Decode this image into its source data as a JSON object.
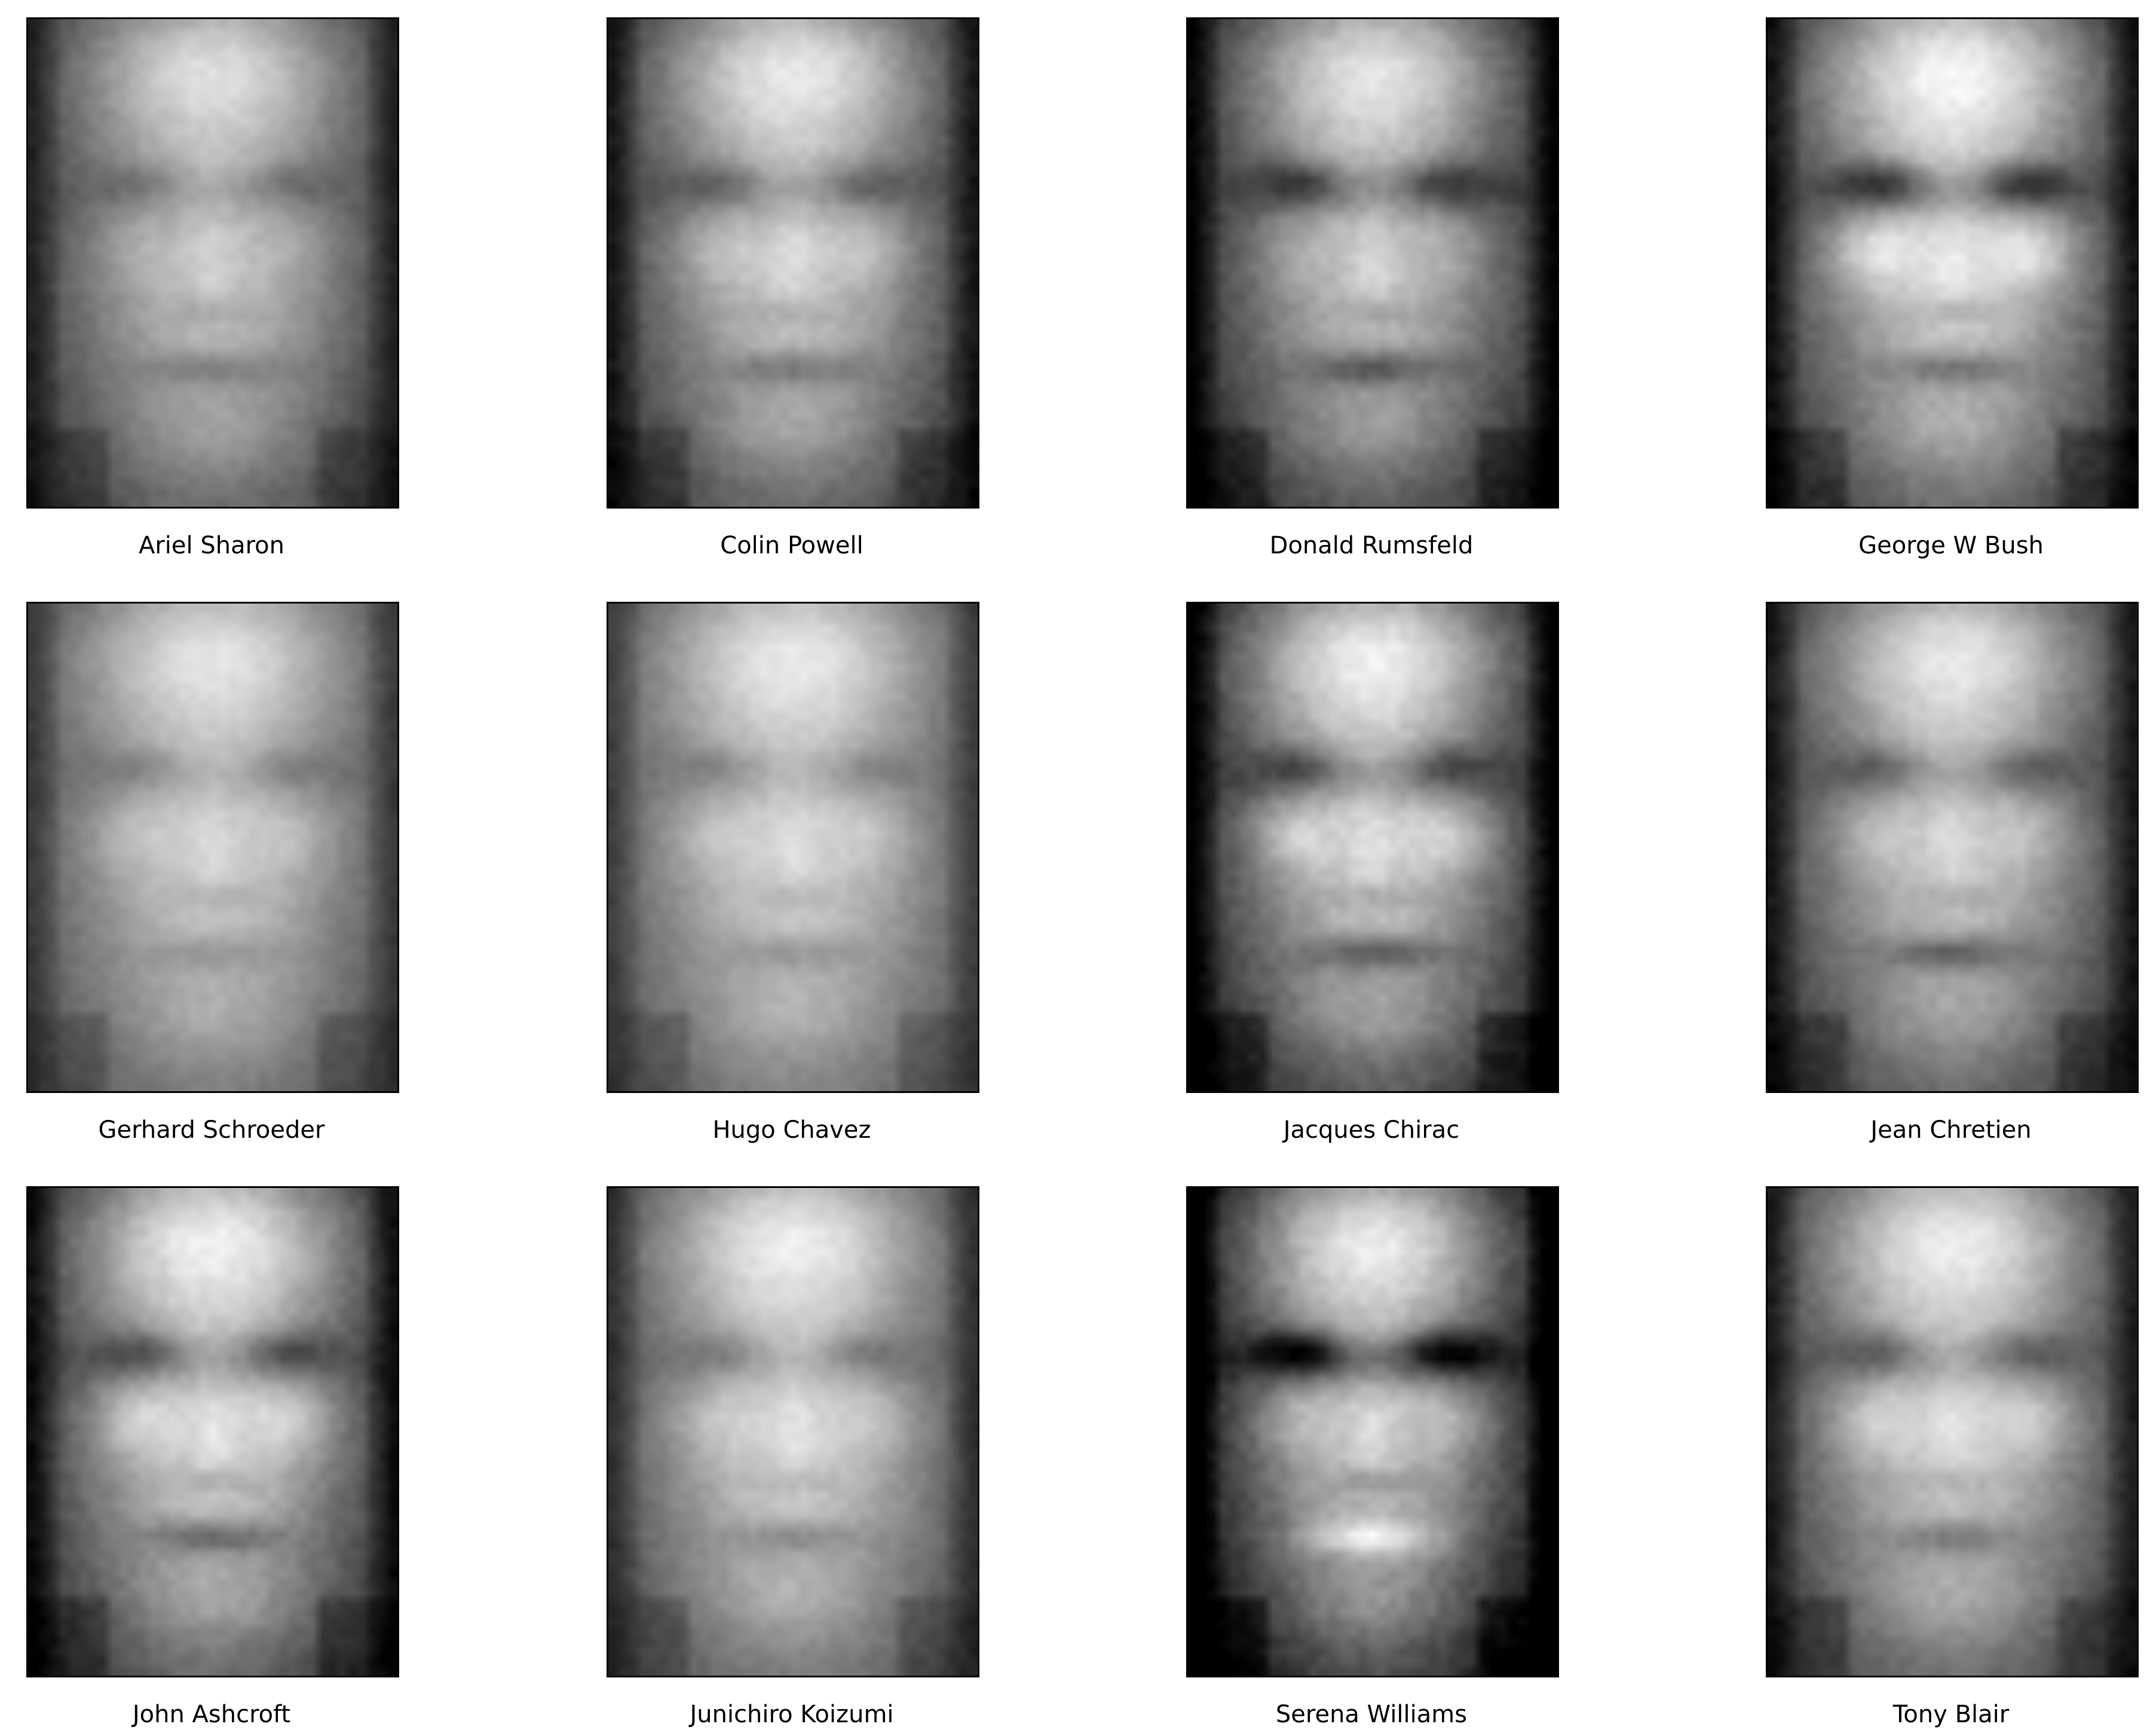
{
  "figure": {
    "background_color": "#ffffff",
    "frame_color": "#000000",
    "colormap": "grayscale",
    "rows": 3,
    "columns": 4,
    "faces": [
      {
        "label": "Ariel Sharon"
      },
      {
        "label": "Colin Powell"
      },
      {
        "label": "Donald Rumsfeld"
      },
      {
        "label": "George W Bush"
      },
      {
        "label": "Gerhard Schroeder"
      },
      {
        "label": "Hugo Chavez"
      },
      {
        "label": "Jacques Chirac"
      },
      {
        "label": "Jean Chretien"
      },
      {
        "label": "John Ashcroft"
      },
      {
        "label": "Junichiro Koizumi"
      },
      {
        "label": "Serena Williams"
      },
      {
        "label": "Tony Blair"
      }
    ]
  }
}
